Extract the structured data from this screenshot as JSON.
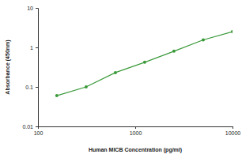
{
  "chart_data": {
    "type": "line",
    "x_label": "Human MICB Concentration (pg/ml)",
    "y_label": "Absorbance (450nm)",
    "x": [
      156.25,
      312.5,
      625,
      1250,
      2500,
      5000,
      10000
    ],
    "values": [
      0.06,
      0.1,
      0.23,
      0.42,
      0.8,
      1.55,
      2.5
    ],
    "color": "#3a9a3a",
    "marker": "circle",
    "log": true,
    "xlim": [
      100,
      10000
    ],
    "xticks": [
      100,
      1000,
      10000
    ],
    "ylim": [
      0.01,
      10
    ],
    "yticks": [
      0.01,
      0.1,
      1,
      10
    ]
  }
}
